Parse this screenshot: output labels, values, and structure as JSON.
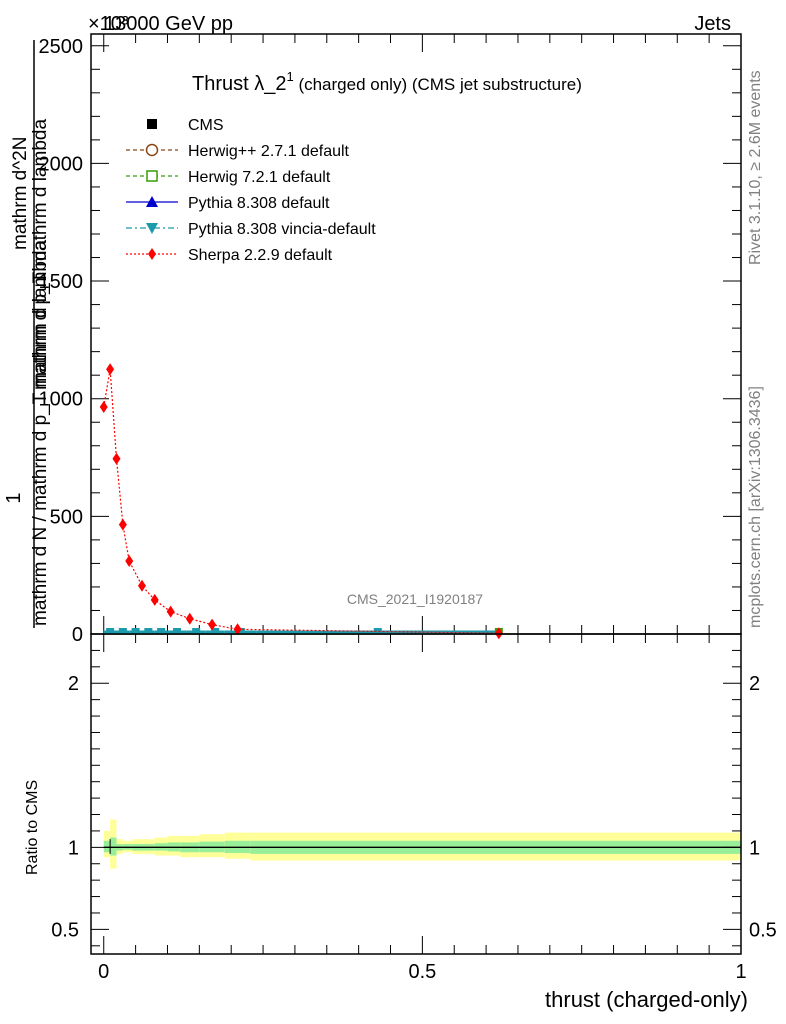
{
  "header": {
    "left": "13000 GeV pp",
    "right": "Jets",
    "exponent": "×10³"
  },
  "side_labels": {
    "rivet": "Rivet 3.1.10, ≥ 2.6M events",
    "mcplots": "mcplots.cern.ch [arXiv:1306.3436]"
  },
  "watermark": "CMS_2021_I1920187",
  "chart_data": [
    {
      "type": "line",
      "title_main": "Thrust λ_2",
      "title_sup": "1",
      "title_rest": " (charged only) (CMS jet substructure)",
      "xlabel": "thrust (charged-only)",
      "ylabel_line1": "1",
      "ylabel_line2": "mathrm d N / mathrm d p_T mathrm d lambda",
      "ylabel_top": "mathrm d^2N",
      "ylabel_mid": "mathrm d p_T mathrm d lambda",
      "xlim": [
        -0.02,
        1.0
      ],
      "ylim": [
        0,
        2550
      ],
      "x_ticks": [
        {
          "v": 0,
          "label": "0"
        },
        {
          "v": 0.5,
          "label": "0.5"
        },
        {
          "v": 1,
          "label": "1"
        }
      ],
      "y_ticks": [
        {
          "v": 0,
          "label": "0"
        },
        {
          "v": 500,
          "label": "500"
        },
        {
          "v": 1000,
          "label": "1000"
        },
        {
          "v": 1500,
          "label": "1500"
        },
        {
          "v": 2000,
          "label": "2000"
        },
        {
          "v": 2500,
          "label": "2500"
        }
      ],
      "legend": [
        {
          "name": "CMS",
          "color": "#000000",
          "marker": "square-filled",
          "line": "none"
        },
        {
          "name": "Herwig++ 2.7.1 default",
          "color": "#8b4513",
          "marker": "circle-open",
          "line": "dashed"
        },
        {
          "name": "Herwig 7.2.1 default",
          "color": "#3a9a0a",
          "marker": "square-open",
          "line": "dashed"
        },
        {
          "name": "Pythia 8.308 default",
          "color": "#0000cc",
          "marker": "triangle-up",
          "line": "solid"
        },
        {
          "name": "Pythia 8.308 vincia-default",
          "color": "#1a9aaa",
          "marker": "triangle-down",
          "line": "dashdot"
        },
        {
          "name": "Sherpa 2.2.9 default",
          "color": "#ff0000",
          "marker": "diamond",
          "line": "dotted"
        }
      ],
      "sherpa_series": {
        "x": [
          0.0,
          0.01,
          0.02,
          0.03,
          0.04,
          0.06,
          0.08,
          0.105,
          0.135,
          0.17,
          0.21,
          0.62
        ],
        "y": [
          965,
          1125,
          745,
          465,
          310,
          205,
          145,
          95,
          65,
          40,
          20,
          3
        ]
      },
      "flat_series_bins": [
        0.0,
        0.02,
        0.04,
        0.06,
        0.08,
        0.1,
        0.13,
        0.16,
        0.19,
        0.24,
        0.62
      ]
    },
    {
      "type": "area",
      "ylabel": "Ratio to CMS",
      "xlim": [
        -0.02,
        1.0
      ],
      "ylim": [
        0.35,
        2.3
      ],
      "y_ticks": [
        {
          "v": 0.5,
          "label": "0.5"
        },
        {
          "v": 1,
          "label": "1"
        },
        {
          "v": 2,
          "label": "2"
        }
      ],
      "band_edges": [
        0.0,
        0.01,
        0.02,
        0.03,
        0.045,
        0.06,
        0.08,
        0.1,
        0.12,
        0.15,
        0.19,
        0.23,
        1.0
      ],
      "yellow_band": [
        [
          0.94,
          1.1
        ],
        [
          0.87,
          1.17
        ],
        [
          0.96,
          1.05
        ],
        [
          0.97,
          1.04
        ],
        [
          0.96,
          1.05
        ],
        [
          0.96,
          1.05
        ],
        [
          0.95,
          1.06
        ],
        [
          0.95,
          1.07
        ],
        [
          0.94,
          1.07
        ],
        [
          0.94,
          1.08
        ],
        [
          0.93,
          1.09
        ],
        [
          0.92,
          1.09
        ],
        [
          0.94,
          1.08
        ]
      ],
      "green_band": [
        [
          0.97,
          1.04
        ],
        [
          0.95,
          1.06
        ],
        [
          0.98,
          1.02
        ],
        [
          0.985,
          1.02
        ],
        [
          0.98,
          1.02
        ],
        [
          0.98,
          1.02
        ],
        [
          0.98,
          1.025
        ],
        [
          0.975,
          1.03
        ],
        [
          0.97,
          1.03
        ],
        [
          0.97,
          1.035
        ],
        [
          0.965,
          1.04
        ],
        [
          0.96,
          1.04
        ],
        [
          0.97,
          1.035
        ]
      ]
    }
  ]
}
